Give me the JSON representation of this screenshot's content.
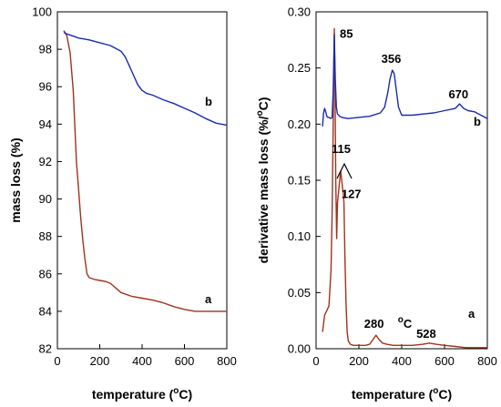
{
  "chart_data": [
    {
      "type": "line",
      "xlabel_parts": [
        "temperature (",
        "o",
        "C)"
      ],
      "ylabel": "mass loss (%)",
      "xlim": [
        0,
        800
      ],
      "ylim": [
        82,
        100
      ],
      "x_ticks": [
        0,
        200,
        400,
        600,
        800
      ],
      "y_ticks": [
        82,
        84,
        86,
        88,
        90,
        92,
        94,
        96,
        98,
        100
      ],
      "grid": false,
      "series": [
        {
          "name": "a",
          "color": "#a0321e",
          "x": [
            30,
            45,
            60,
            75,
            90,
            100,
            110,
            120,
            130,
            140,
            150,
            175,
            200,
            225,
            250,
            265,
            280,
            300,
            350,
            400,
            450,
            500,
            550,
            600,
            650,
            700,
            750,
            800
          ],
          "y": [
            99.0,
            98.7,
            97.8,
            95.8,
            92.0,
            90.5,
            89.0,
            87.8,
            86.8,
            86.0,
            85.8,
            85.7,
            85.65,
            85.6,
            85.5,
            85.35,
            85.2,
            85.0,
            84.8,
            84.7,
            84.6,
            84.45,
            84.25,
            84.1,
            84.0,
            84.0,
            84.0,
            84.0
          ]
        },
        {
          "name": "b",
          "color": "#1a2ab0",
          "x": [
            30,
            50,
            75,
            100,
            150,
            200,
            250,
            300,
            320,
            340,
            360,
            380,
            400,
            420,
            450,
            500,
            550,
            600,
            650,
            700,
            750,
            800
          ],
          "y": [
            98.9,
            98.8,
            98.7,
            98.6,
            98.5,
            98.35,
            98.2,
            97.9,
            97.6,
            97.1,
            96.6,
            96.1,
            95.8,
            95.65,
            95.55,
            95.3,
            95.1,
            94.85,
            94.6,
            94.3,
            94.05,
            93.95
          ]
        }
      ]
    },
    {
      "type": "line",
      "xlabel_parts": [
        "temperature (",
        "o",
        "C)"
      ],
      "ylabel_parts": [
        "derivative mass loss (%/",
        "o",
        "C)"
      ],
      "xlim": [
        0,
        800
      ],
      "ylim": [
        0,
        0.3
      ],
      "x_ticks": [
        0,
        200,
        400,
        600,
        800
      ],
      "y_ticks": [
        "0.00",
        "0.05",
        "0.10",
        "0.15",
        "0.20",
        "0.25",
        "0.30"
      ],
      "grid": false,
      "series": [
        {
          "name": "a",
          "color": "#a0321e",
          "x": [
            30,
            40,
            50,
            60,
            70,
            75,
            80,
            85,
            88,
            92,
            96,
            100,
            105,
            110,
            115,
            120,
            125,
            127,
            130,
            135,
            140,
            145,
            150,
            160,
            175,
            200,
            230,
            250,
            265,
            280,
            295,
            310,
            330,
            360,
            400,
            450,
            500,
            528,
            560,
            600,
            650,
            700,
            750,
            800
          ],
          "y": [
            0.015,
            0.03,
            0.034,
            0.038,
            0.07,
            0.12,
            0.2,
            0.285,
            0.24,
            0.15,
            0.098,
            0.13,
            0.14,
            0.15,
            0.158,
            0.15,
            0.14,
            0.14,
            0.13,
            0.08,
            0.04,
            0.015,
            0.007,
            0.004,
            0.003,
            0.003,
            0.003,
            0.004,
            0.008,
            0.012,
            0.008,
            0.005,
            0.004,
            0.003,
            0.003,
            0.003,
            0.004,
            0.005,
            0.004,
            0.003,
            0.002,
            0.001,
            0.001,
            0.001
          ]
        },
        {
          "name": "b",
          "color": "#1a2ab0",
          "x": [
            30,
            35,
            40,
            45,
            50,
            55,
            60,
            70,
            75,
            80,
            85,
            90,
            95,
            100,
            110,
            120,
            150,
            200,
            250,
            300,
            320,
            335,
            345,
            356,
            365,
            375,
            385,
            400,
            450,
            500,
            550,
            600,
            650,
            670,
            690,
            710,
            740,
            770,
            800
          ],
          "y": [
            0.198,
            0.21,
            0.214,
            0.211,
            0.207,
            0.206,
            0.206,
            0.205,
            0.206,
            0.23,
            0.28,
            0.24,
            0.215,
            0.209,
            0.207,
            0.206,
            0.205,
            0.206,
            0.207,
            0.21,
            0.215,
            0.228,
            0.24,
            0.248,
            0.245,
            0.23,
            0.215,
            0.208,
            0.208,
            0.209,
            0.21,
            0.212,
            0.214,
            0.218,
            0.214,
            0.212,
            0.211,
            0.208,
            0.205
          ]
        }
      ],
      "annotations": [
        {
          "text": "85",
          "x": 85,
          "y": 0.285
        },
        {
          "text": "356",
          "x": 356,
          "y": 0.248
        },
        {
          "text": "670",
          "x": 670,
          "y": 0.218
        },
        {
          "text": "115",
          "x": 115,
          "y": 0.158
        },
        {
          "text": "127",
          "x": 127,
          "y": 0.14
        },
        {
          "text": "280",
          "x": 280,
          "y": 0.012
        },
        {
          "text": "528",
          "x": 528,
          "y": 0.005
        }
      ],
      "unit_marker_parts": [
        "o",
        "C"
      ]
    }
  ]
}
